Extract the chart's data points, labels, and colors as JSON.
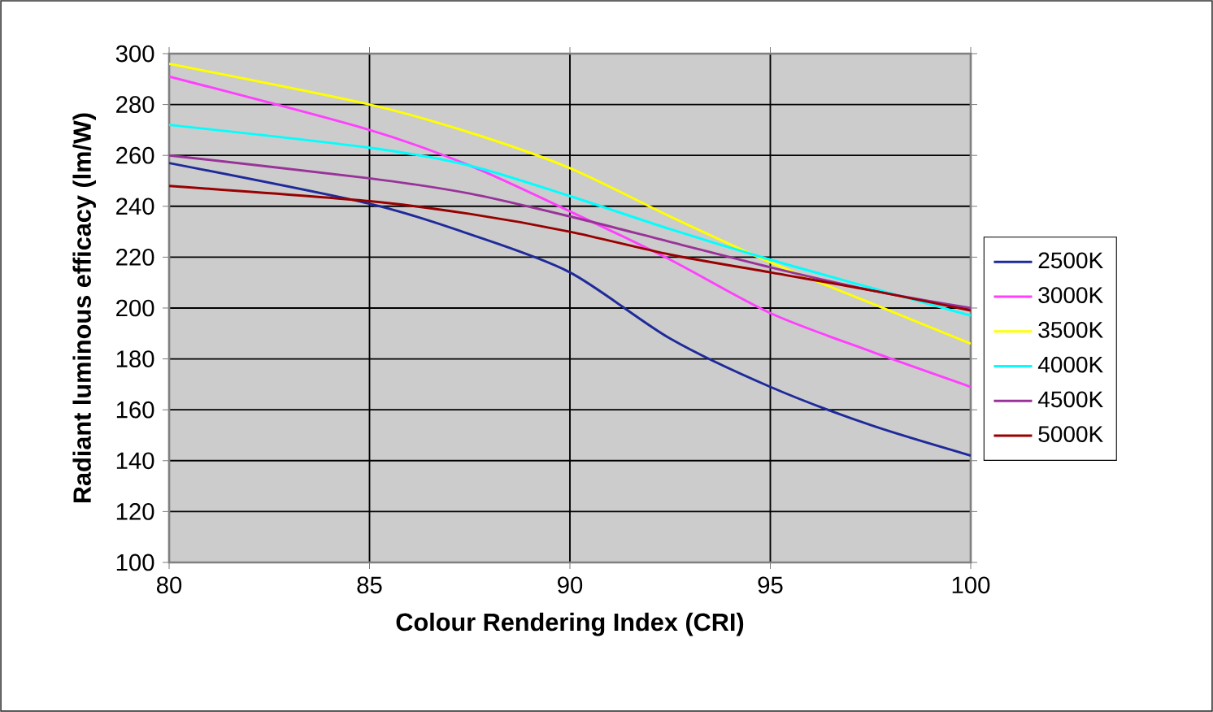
{
  "chart_data": {
    "type": "line",
    "xlabel": "Colour Rendering Index (CRI)",
    "ylabel": "Radiant luminous efficacy (lm/W)",
    "x": [
      80,
      85,
      87.5,
      90,
      92.5,
      95,
      97.5,
      100
    ],
    "series": [
      {
        "name": "2500K",
        "color": "#1f2a9a",
        "values": [
          257,
          241,
          229,
          214,
          188,
          169,
          154,
          142
        ]
      },
      {
        "name": "3000K",
        "color": "#ff40ff",
        "values": [
          291,
          270,
          256,
          238,
          219,
          198,
          183,
          169
        ]
      },
      {
        "name": "3500K",
        "color": "#ffff00",
        "values": [
          296,
          280,
          269,
          255,
          236,
          218,
          202,
          186
        ]
      },
      {
        "name": "4000K",
        "color": "#00ffff",
        "values": [
          272,
          263,
          256,
          244,
          231,
          219,
          208,
          197
        ]
      },
      {
        "name": "4500K",
        "color": "#993399",
        "values": [
          260,
          251,
          245,
          236,
          226,
          216,
          207,
          200
        ]
      },
      {
        "name": "5000K",
        "color": "#990000",
        "values": [
          248,
          242,
          237,
          230,
          221,
          214,
          207,
          199
        ]
      }
    ],
    "xlim": [
      80,
      100
    ],
    "xticks": [
      80,
      85,
      90,
      95,
      100
    ],
    "ylim": [
      100,
      300
    ],
    "yticks": [
      100,
      120,
      140,
      160,
      180,
      200,
      220,
      240,
      260,
      280,
      300
    ],
    "grid": true,
    "legend": "right",
    "marker": "none",
    "line_style": "solid"
  }
}
